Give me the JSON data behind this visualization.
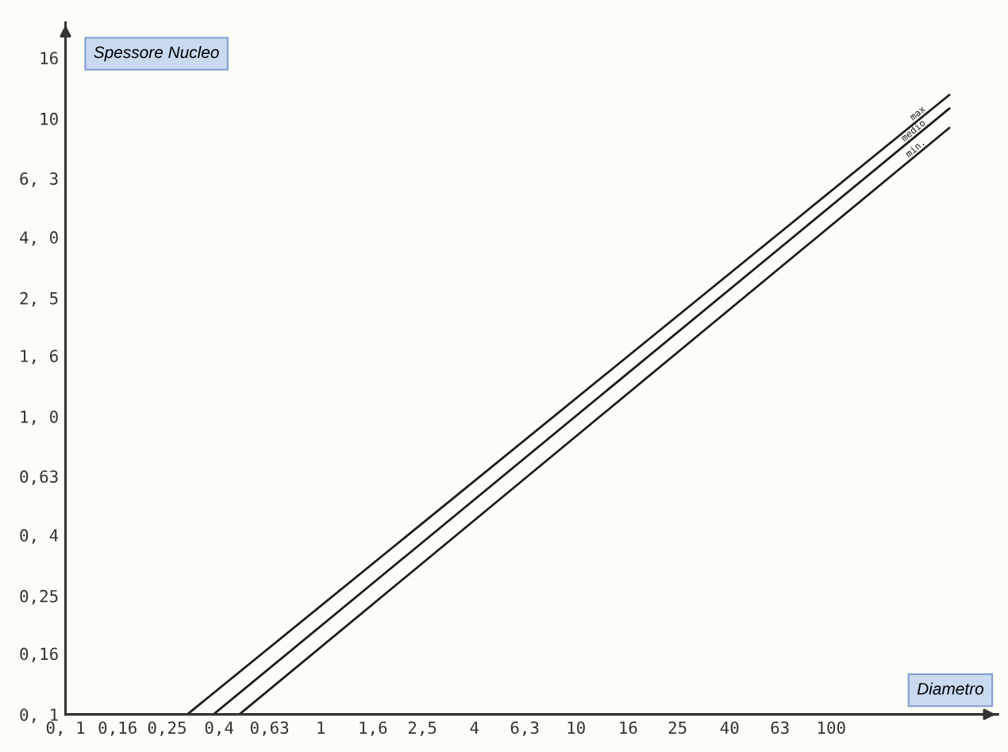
{
  "chart_data": {
    "type": "line",
    "log": "xy",
    "xlabel": "Diametro",
    "ylabel": "Spessore Nucleo",
    "xlim": [
      0.1,
      450
    ],
    "ylim": [
      0.1,
      21
    ],
    "xticks": [
      {
        "value": 0.1,
        "label": "0, 1"
      },
      {
        "value": 0.16,
        "label": "0,16"
      },
      {
        "value": 0.25,
        "label": "0,25"
      },
      {
        "value": 0.4,
        "label": "0,4"
      },
      {
        "value": 0.63,
        "label": "0,63"
      },
      1,
      {
        "value": 1.6,
        "label": "1,6"
      },
      {
        "value": 2.5,
        "label": "2,5"
      },
      4,
      {
        "value": 6.3,
        "label": "6,3"
      },
      10,
      16,
      25,
      40,
      63,
      100
    ],
    "yticks": [
      {
        "value": 0.1,
        "label": "0, 1"
      },
      {
        "value": 0.16,
        "label": "0,16"
      },
      {
        "value": 0.25,
        "label": "0,25"
      },
      {
        "value": 0.4,
        "label": "0, 4"
      },
      {
        "value": 0.63,
        "label": "0,63"
      },
      {
        "value": 1,
        "label": "1, 0"
      },
      {
        "value": 1.6,
        "label": "1, 6"
      },
      {
        "value": 2.5,
        "label": "2, 5"
      },
      {
        "value": 4,
        "label": "4, 0"
      },
      {
        "value": 6.3,
        "label": "6, 3"
      },
      10,
      16
    ],
    "grid": false,
    "legend": false,
    "marker": "none",
    "line_style": "solid",
    "series": [
      {
        "name": "max",
        "color": "#1e1e1e",
        "x": [
          0.3,
          290
        ],
        "values": [
          0.1,
          12
        ]
      },
      {
        "name": "medio",
        "color": "#1e1e1e",
        "x": [
          0.38,
          290
        ],
        "values": [
          0.1,
          10.8
        ]
      },
      {
        "name": "min.",
        "color": "#1e1e1e",
        "x": [
          0.48,
          290
        ],
        "values": [
          0.1,
          9.3
        ]
      }
    ]
  }
}
